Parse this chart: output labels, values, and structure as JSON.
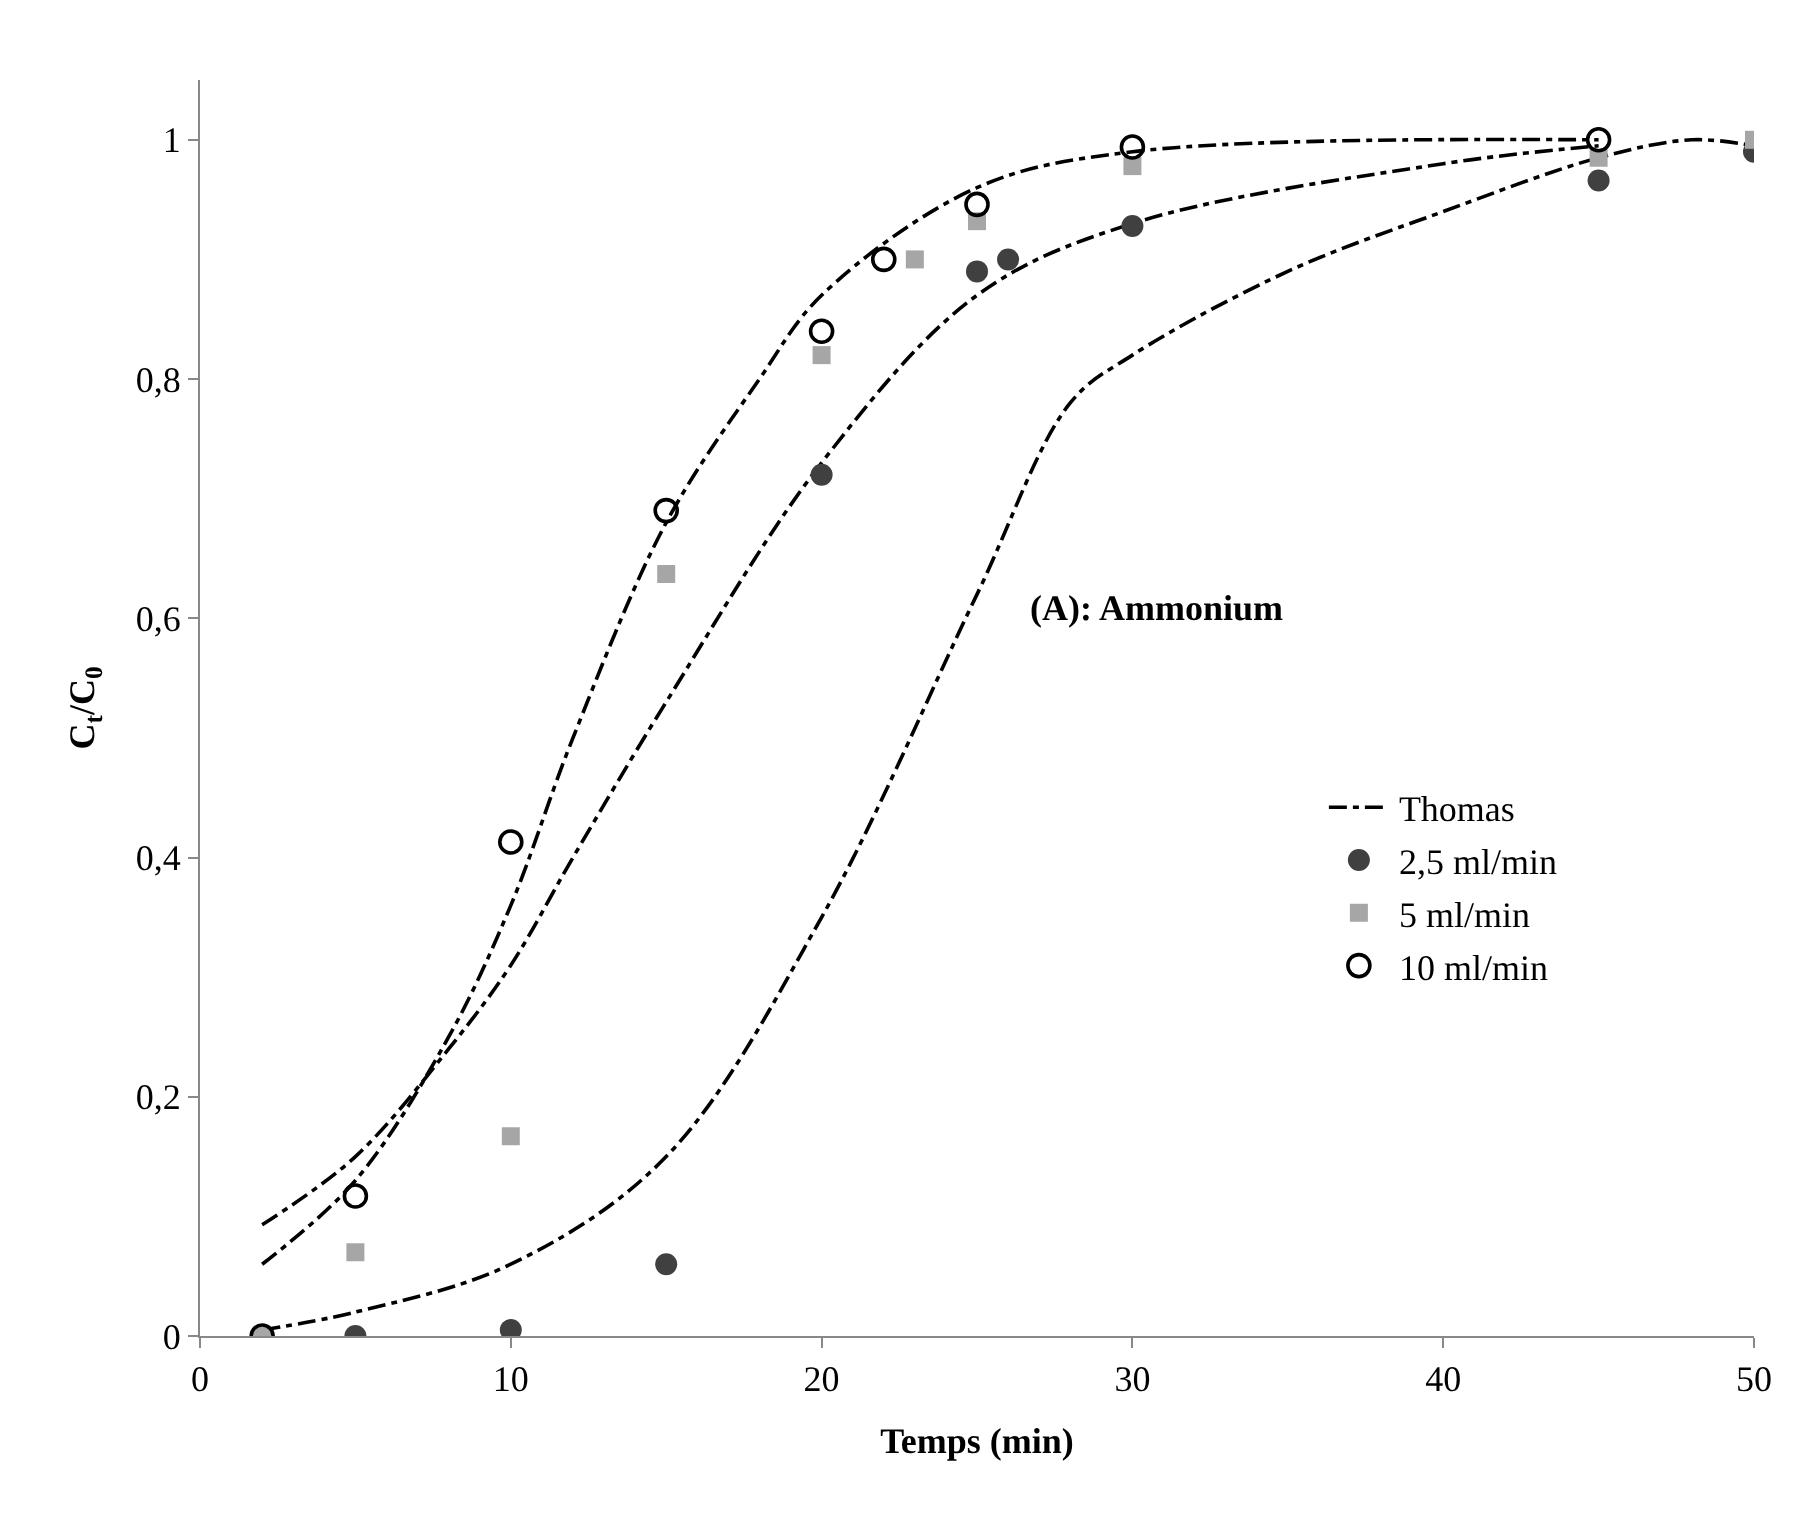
{
  "chart_data": {
    "type": "scatter",
    "xlabel": "Temps (min)",
    "ylabel": "C$_{t}$/C$_{0}$",
    "xlim": [
      0,
      50
    ],
    "xticks": [
      0,
      10,
      20,
      30,
      40,
      50
    ],
    "ylim": [
      0,
      1.05
    ],
    "yticks": [
      0,
      {
        "value": 0.2,
        "label": "0,2"
      },
      {
        "value": 0.4,
        "label": "0,4"
      },
      {
        "value": 0.6,
        "label": "0,6"
      },
      {
        "value": 0.8,
        "label": "0,8"
      },
      1
    ],
    "legend": "right",
    "annotations": [
      "(A): Ammonium"
    ],
    "series": [
      {
        "name": "Thomas",
        "type": "line",
        "line_style": "dashdot",
        "marker": "none",
        "color": "#000000",
        "x": [
          2,
          5,
          8,
          10,
          12,
          15,
          18,
          20,
          25,
          30,
          45
        ],
        "values": [
          0.06,
          0.13,
          0.25,
          0.36,
          0.5,
          0.68,
          0.8,
          0.87,
          0.96,
          0.99,
          1.0
        ]
      },
      {
        "type": "line",
        "line_style": "dashdot",
        "marker": "none",
        "color": "#000000",
        "x": [
          2,
          5,
          8,
          10,
          12,
          15,
          20,
          25,
          30,
          40,
          45
        ],
        "values": [
          0.093,
          0.15,
          0.24,
          0.31,
          0.4,
          0.53,
          0.73,
          0.87,
          0.93,
          0.98,
          0.995
        ]
      },
      {
        "type": "line",
        "line_style": "dashdot",
        "marker": "none",
        "color": "#000000",
        "x": [
          2,
          5,
          10,
          15,
          20,
          25,
          28,
          30,
          35,
          40,
          45,
          48,
          50
        ],
        "values": [
          0.005,
          0.02,
          0.06,
          0.15,
          0.35,
          0.62,
          0.78,
          0.82,
          0.89,
          0.94,
          0.985,
          1.0,
          0.995
        ]
      },
      {
        "name": "2,5 ml/min",
        "marker": "circle",
        "color": "#404040",
        "x": [
          5,
          10,
          15,
          20,
          25,
          26,
          30,
          45,
          50
        ],
        "values": [
          0,
          0.005,
          0.06,
          0.72,
          0.89,
          0.9,
          0.928,
          0.966,
          0.99
        ]
      },
      {
        "name": "5 ml/min",
        "marker": "square",
        "color": "#a6a6a6",
        "x": [
          2,
          5,
          10,
          15,
          20,
          23,
          25,
          30,
          45,
          50
        ],
        "values": [
          0,
          0.07,
          0.167,
          0.637,
          0.82,
          0.9,
          0.932,
          0.978,
          0.985,
          1.0
        ]
      },
      {
        "name": "10 ml/min",
        "marker": "circle-open",
        "color": "#000000",
        "x": [
          2,
          5,
          10,
          15,
          20,
          22,
          25,
          30,
          45
        ],
        "values": [
          0,
          0.117,
          0.413,
          0.69,
          0.84,
          0.9,
          0.946,
          0.994,
          1.0
        ]
      }
    ]
  }
}
